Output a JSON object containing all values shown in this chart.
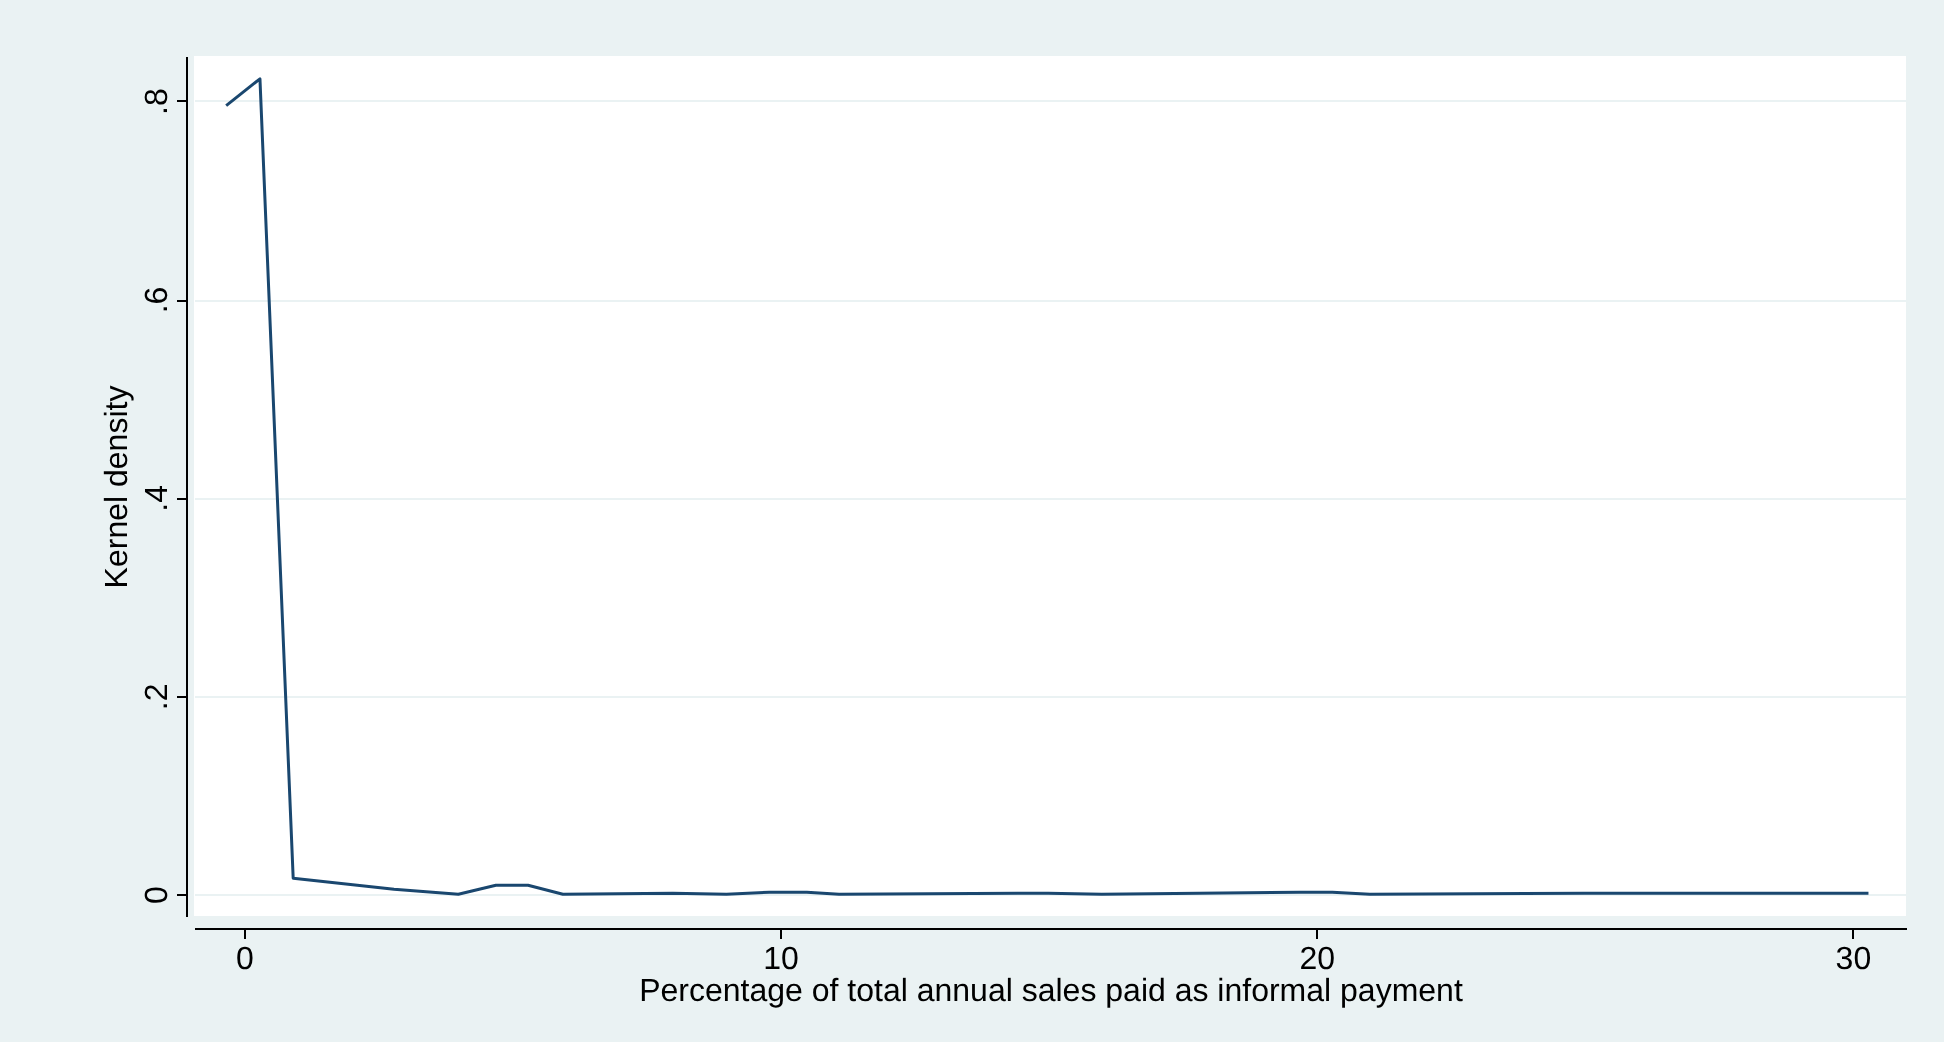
{
  "chart_data": {
    "type": "line",
    "xlabel": "Percentage of total annual sales paid as informal payment",
    "ylabel": "Kernel density",
    "x": [
      -0.33,
      0.3,
      0.92,
      2.8,
      4.0,
      4.7,
      5.3,
      5.95,
      8.0,
      9.0,
      9.8,
      10.5,
      11.1,
      15.0,
      16.0,
      19.7,
      20.3,
      21.0,
      25.0,
      30.3
    ],
    "series": [
      {
        "color": "#1a476f",
        "values": [
          0.795,
          0.822,
          0.016,
          0.005,
          0.0,
          0.009,
          0.009,
          0.0,
          0.001,
          0.0,
          0.002,
          0.002,
          0.0,
          0.001,
          0.0,
          0.002,
          0.002,
          0.0,
          0.001,
          0.001
        ]
      }
    ],
    "xlim": [
      -0.93,
      31
    ],
    "xticks": [
      0,
      10,
      20,
      30
    ],
    "ylim": [
      -0.022,
      0.845
    ],
    "yticks": [
      {
        "value": 0,
        "label": "0"
      },
      {
        "value": 0.2,
        "label": ".2"
      },
      {
        "value": 0.4,
        "label": ".4"
      },
      {
        "value": 0.6,
        "label": ".6"
      },
      {
        "value": 0.8,
        "label": ".8"
      }
    ],
    "grid": "y",
    "marker": "none",
    "line_style": "solid"
  }
}
